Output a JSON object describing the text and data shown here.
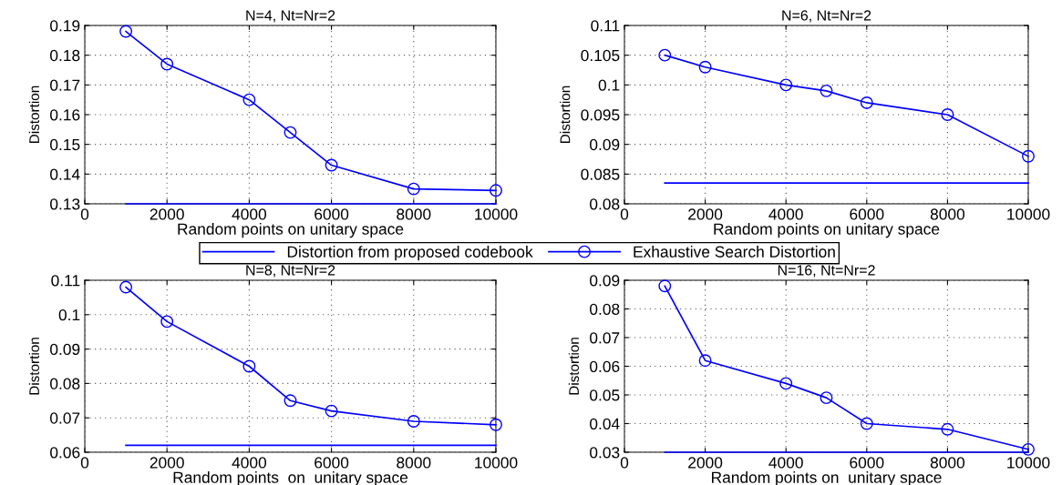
{
  "chart_data": [
    {
      "type": "line",
      "title": "N=4, Nt=Nr=2",
      "xlabel": "Random points on unitary space",
      "ylabel": "Distortion",
      "xlim": [
        0,
        10000
      ],
      "xticks": [
        0,
        2000,
        4000,
        6000,
        8000,
        10000
      ],
      "ylim": [
        0.13,
        0.19
      ],
      "yticks": [
        0.13,
        0.14,
        0.15,
        0.16,
        0.17,
        0.18,
        0.19
      ],
      "grid": true,
      "legend": "bottom",
      "series": [
        {
          "name": "Distortion from proposed codebook",
          "color": "#0000ff",
          "marker": "none",
          "x": [
            1000,
            10000
          ],
          "values": [
            0.13,
            0.13
          ]
        },
        {
          "name": "Exhaustive Search Distortion",
          "color": "#0000ff",
          "marker": "circle",
          "x": [
            1000,
            2000,
            4000,
            5000,
            6000,
            8000,
            10000
          ],
          "values": [
            0.188,
            0.177,
            0.165,
            0.154,
            0.143,
            0.135,
            0.1345
          ]
        }
      ]
    },
    {
      "type": "line",
      "title": "N=6, Nt=Nr=2",
      "xlabel": "Random points on unitary space",
      "ylabel": "Distortion",
      "xlim": [
        0,
        10000
      ],
      "xticks": [
        0,
        2000,
        4000,
        6000,
        8000,
        10000
      ],
      "ylim": [
        0.08,
        0.11
      ],
      "yticks": [
        0.08,
        0.085,
        0.09,
        0.095,
        0.1,
        0.105,
        0.11
      ],
      "grid": true,
      "series": [
        {
          "color": "#0000ff",
          "marker": "none",
          "x": [
            1000,
            10000
          ],
          "values": [
            0.0835,
            0.0835
          ]
        },
        {
          "color": "#0000ff",
          "marker": "circle",
          "x": [
            1000,
            2000,
            4000,
            5000,
            6000,
            8000,
            10000
          ],
          "values": [
            0.105,
            0.103,
            0.1,
            0.099,
            0.097,
            0.095,
            0.088
          ]
        }
      ]
    },
    {
      "type": "line",
      "title": "N=8, Nt=Nr=2",
      "xlabel": "Random points  on  unitary space",
      "ylabel": "Distortion",
      "xlim": [
        0,
        10000
      ],
      "xticks": [
        0,
        2000,
        4000,
        6000,
        8000,
        10000
      ],
      "ylim": [
        0.06,
        0.11
      ],
      "yticks": [
        0.06,
        0.07,
        0.08,
        0.09,
        0.1,
        0.11
      ],
      "grid": true,
      "series": [
        {
          "color": "#0000ff",
          "marker": "none",
          "x": [
            1000,
            10000
          ],
          "values": [
            0.062,
            0.062
          ]
        },
        {
          "color": "#0000ff",
          "marker": "circle",
          "x": [
            1000,
            2000,
            4000,
            5000,
            6000,
            8000,
            10000
          ],
          "values": [
            0.108,
            0.098,
            0.085,
            0.075,
            0.072,
            0.069,
            0.068
          ]
        }
      ]
    },
    {
      "type": "line",
      "title": "N=16, Nt=Nr=2",
      "xlabel": "Random points on  unitary space",
      "ylabel": "Distortion",
      "xlim": [
        0,
        10000
      ],
      "xticks": [
        0,
        2000,
        4000,
        6000,
        8000,
        10000
      ],
      "ylim": [
        0.03,
        0.09
      ],
      "yticks": [
        0.03,
        0.04,
        0.05,
        0.06,
        0.07,
        0.08,
        0.09
      ],
      "grid": true,
      "series": [
        {
          "color": "#0000ff",
          "marker": "none",
          "x": [
            1000,
            10000
          ],
          "values": [
            0.03,
            0.03
          ]
        },
        {
          "color": "#0000ff",
          "marker": "circle",
          "x": [
            1000,
            2000,
            4000,
            5000,
            6000,
            8000,
            10000
          ],
          "values": [
            0.088,
            0.062,
            0.054,
            0.049,
            0.04,
            0.038,
            0.031
          ]
        }
      ]
    }
  ]
}
